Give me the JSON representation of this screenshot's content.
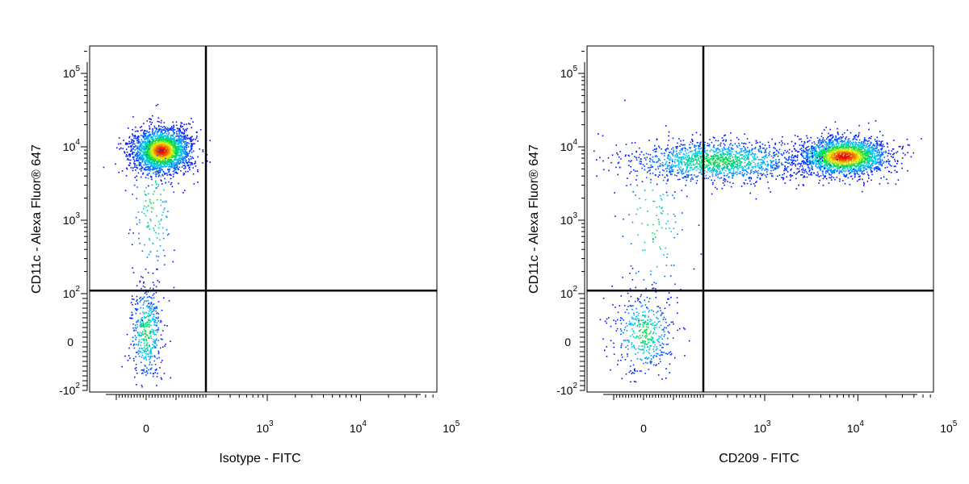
{
  "chart_data": [
    {
      "type": "scatter",
      "subtype": "flow-cytometry-density-dot-plot",
      "xlabel": "Isotype - FITC",
      "ylabel": "CD11c - Alexa Fluor® 647",
      "x_scale": "biexponential",
      "y_scale": "biexponential",
      "x_ticks": [
        {
          "value": 0,
          "base": "0",
          "exp": ""
        },
        {
          "value": 1000,
          "base": "10",
          "exp": "3"
        },
        {
          "value": 10000,
          "base": "10",
          "exp": "4"
        },
        {
          "value": 100000,
          "base": "10",
          "exp": "5"
        }
      ],
      "y_ticks": [
        {
          "value": -100,
          "base": "-10",
          "exp": "2"
        },
        {
          "value": 0,
          "base": "0",
          "exp": ""
        },
        {
          "value": 100,
          "base": "10",
          "exp": "2"
        },
        {
          "value": 1000,
          "base": "10",
          "exp": "3"
        },
        {
          "value": 10000,
          "base": "10",
          "exp": "4"
        },
        {
          "value": 100000,
          "base": "10",
          "exp": "5"
        }
      ],
      "quadrant_gate": {
        "x": 200,
        "y": 110
      },
      "populations": [
        {
          "x_center": 50,
          "y_center": 9000,
          "count": 2400
        },
        {
          "x_center": 0,
          "y_center": 20,
          "count": 480
        },
        {
          "x_center": 20,
          "y_center": 1500,
          "count": 160
        }
      ]
    },
    {
      "type": "scatter",
      "subtype": "flow-cytometry-density-dot-plot",
      "xlabel": "CD209 - FITC",
      "ylabel": "CD11c - Alexa Fluor® 647",
      "x_scale": "biexponential",
      "y_scale": "biexponential",
      "x_ticks": [
        {
          "value": 0,
          "base": "0",
          "exp": ""
        },
        {
          "value": 1000,
          "base": "10",
          "exp": "3"
        },
        {
          "value": 10000,
          "base": "10",
          "exp": "4"
        },
        {
          "value": 100000,
          "base": "10",
          "exp": "5"
        }
      ],
      "y_ticks": [
        {
          "value": -100,
          "base": "-10",
          "exp": "2"
        },
        {
          "value": 0,
          "base": "0",
          "exp": ""
        },
        {
          "value": 100,
          "base": "10",
          "exp": "2"
        },
        {
          "value": 1000,
          "base": "10",
          "exp": "3"
        },
        {
          "value": 10000,
          "base": "10",
          "exp": "4"
        },
        {
          "value": 100000,
          "base": "10",
          "exp": "5"
        }
      ],
      "quadrant_gate": {
        "x": 200,
        "y": 110
      },
      "populations": [
        {
          "x_center": 7000,
          "y_center": 7500,
          "count": 2200
        },
        {
          "x_center": 300,
          "y_center": 6500,
          "count": 1500
        },
        {
          "x_center": 0,
          "y_center": 20,
          "count": 450
        },
        {
          "x_center": 30,
          "y_center": 800,
          "count": 120
        }
      ]
    }
  ]
}
